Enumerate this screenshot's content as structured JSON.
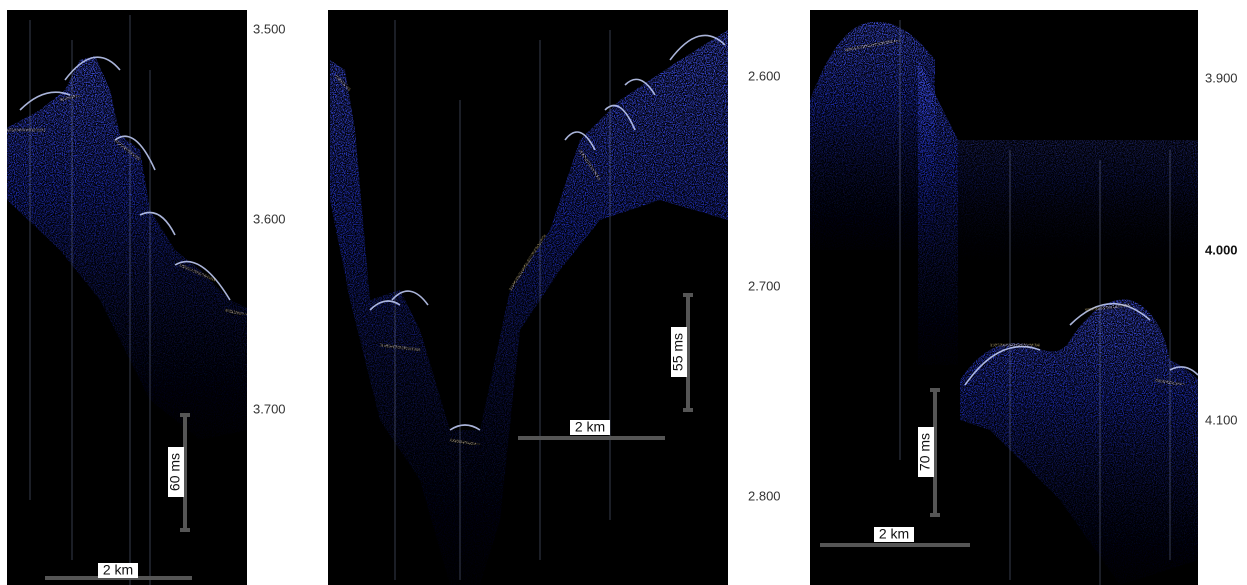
{
  "panels": [
    {
      "ticks": [
        "3.500",
        "3.600",
        "3.700"
      ],
      "time_scale": "60 ms",
      "distance_scale": "2 km"
    },
    {
      "ticks": [
        "2.600",
        "2.700",
        "2.800"
      ],
      "time_scale": "55 ms",
      "distance_scale": "2 km"
    },
    {
      "ticks": [
        "3.900",
        "4.000",
        "4.100"
      ],
      "time_scale": "70 ms",
      "distance_scale": "2 km"
    }
  ]
}
